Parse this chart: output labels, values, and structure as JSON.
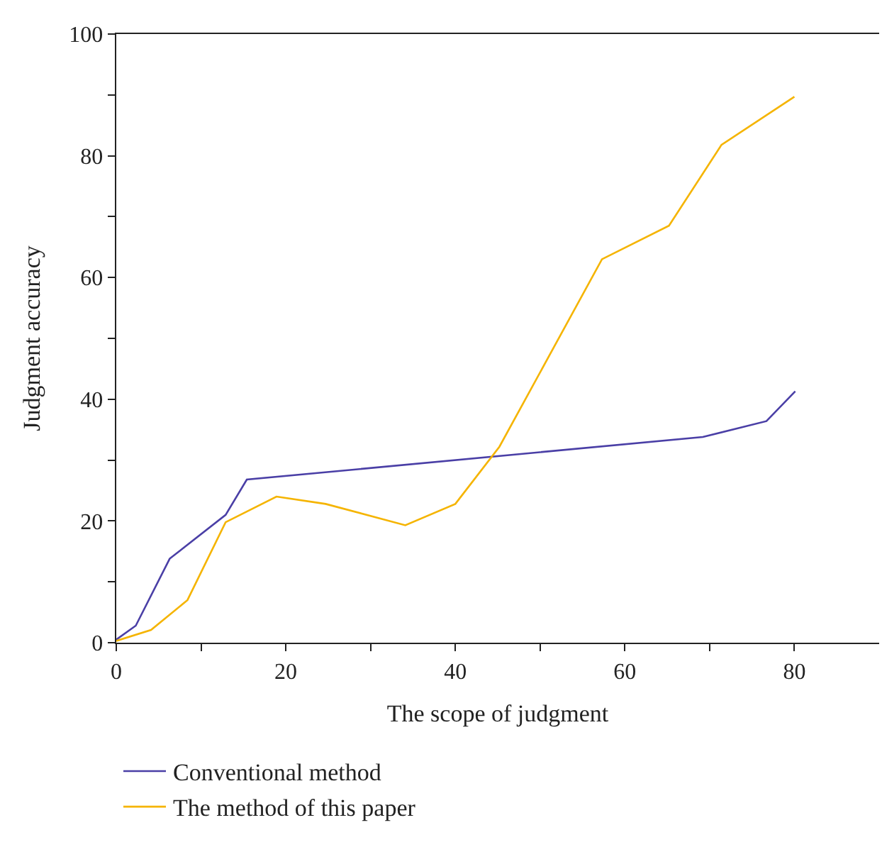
{
  "chart_data": {
    "type": "line",
    "xlabel": "The scope of judgment",
    "ylabel": "Judgment accuracy",
    "xlim": [
      0,
      90
    ],
    "xticks": [
      0,
      {
        "value": 10,
        "label": null
      },
      20,
      {
        "value": 30,
        "label": null
      },
      40,
      {
        "value": 50,
        "label": null
      },
      60,
      {
        "value": 70,
        "label": null
      },
      80
    ],
    "ylim": [
      0,
      100
    ],
    "yticks": [
      0,
      {
        "value": 10,
        "label": null
      },
      20,
      {
        "value": 30,
        "label": null
      },
      40,
      {
        "value": 50,
        "label": null
      },
      60,
      {
        "value": 70,
        "label": null
      },
      80,
      {
        "value": 90,
        "label": null
      },
      100
    ],
    "legend": "bottom",
    "marker": "none",
    "line_style": "solid",
    "series": [
      {
        "name": "Conventional method",
        "color": "#4a3fa6",
        "x": [
          0,
          2.3,
          6.3,
          12.9,
          15.4,
          69.2,
          76.7,
          80.1
        ],
        "values": [
          0.5,
          2.8,
          13.8,
          21,
          26.8,
          33.8,
          36.4,
          41.3
        ]
      },
      {
        "name": "The method of this paper",
        "color": "#f5b400",
        "x": [
          0,
          4.1,
          8.4,
          12.9,
          18.9,
          24.7,
          34.1,
          40,
          45.2,
          57.3,
          65.2,
          71.4,
          80
        ],
        "values": [
          0.3,
          2.1,
          7,
          19.8,
          24,
          22.8,
          19.3,
          22.8,
          32.2,
          63,
          68.5,
          81.8,
          89.7
        ]
      }
    ]
  }
}
